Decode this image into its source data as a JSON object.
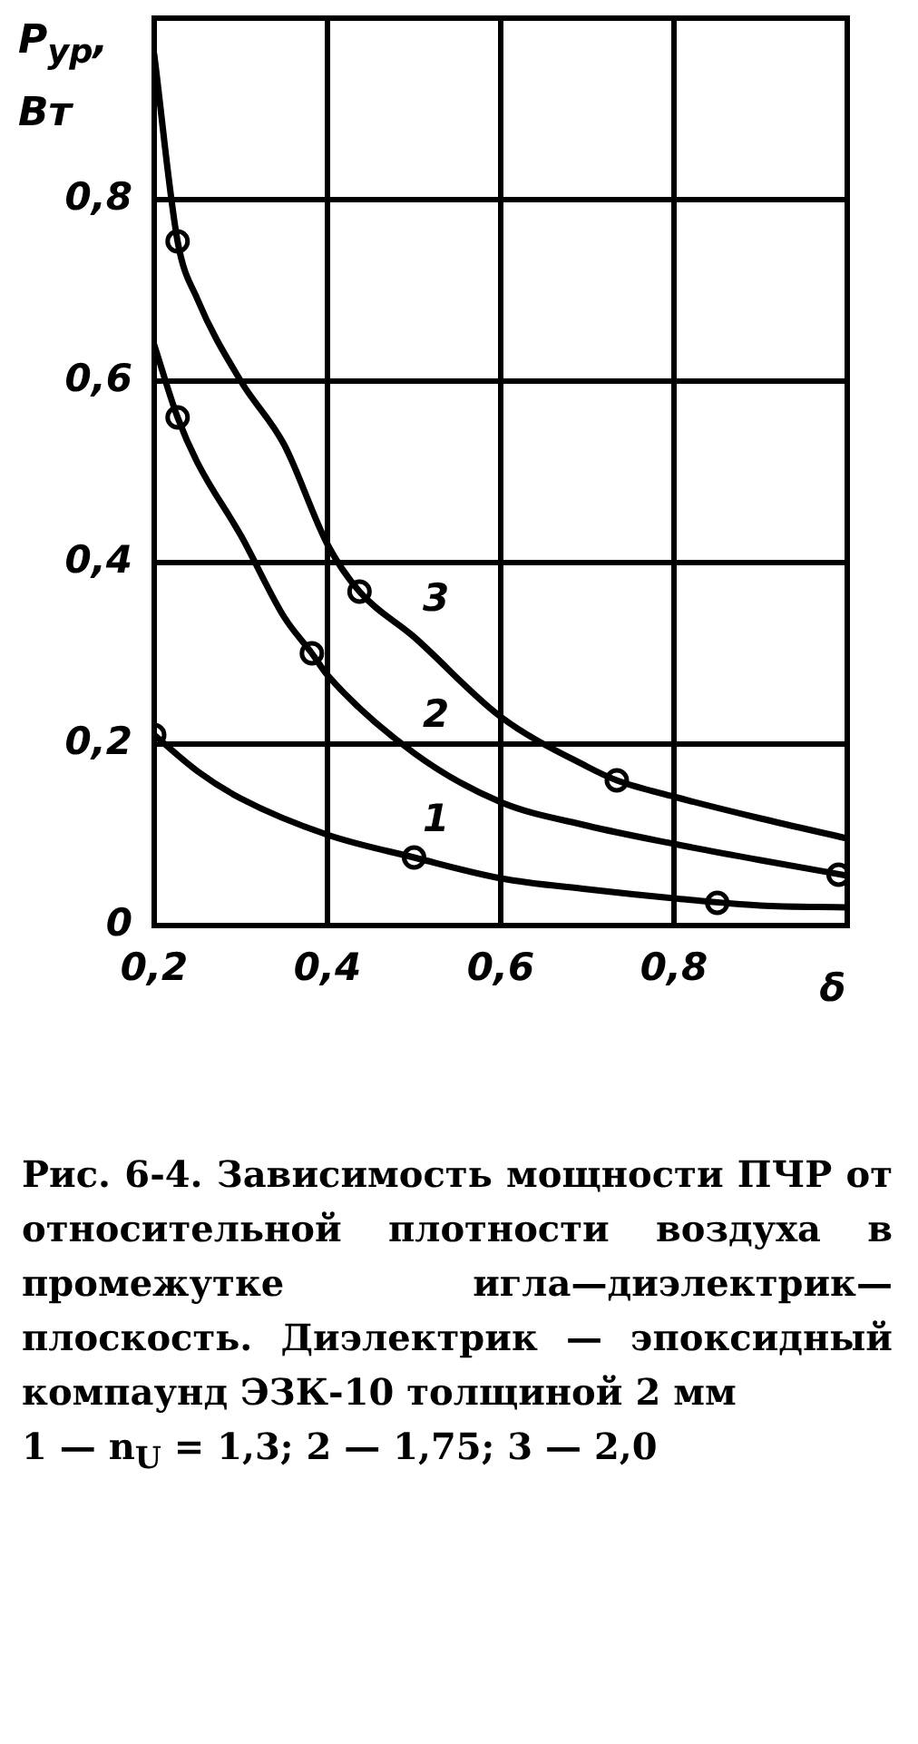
{
  "chart_data": {
    "type": "line",
    "xlabel": "δ",
    "ylabel": "P$_{ур}$, Вт",
    "xlim": [
      0.2,
      1.0
    ],
    "ylim": [
      0,
      1.0
    ],
    "xticks": [
      {
        "value": 0.2,
        "label": "0,2"
      },
      {
        "value": 0.4,
        "label": "0,4"
      },
      {
        "value": 0.6,
        "label": "0,6"
      },
      {
        "value": 0.8,
        "label": "0,8"
      }
    ],
    "yticks": [
      0,
      {
        "value": 0.2,
        "label": "0,2"
      },
      {
        "value": 0.4,
        "label": "0,4"
      },
      {
        "value": 0.6,
        "label": "0,6"
      },
      {
        "value": 0.8,
        "label": "0,8"
      }
    ],
    "grid": true,
    "legend": false,
    "series": [
      {
        "name": "1",
        "type": "line",
        "marker": "none",
        "color": "#000000",
        "x": [
          0.2,
          0.25,
          0.3,
          0.4,
          0.5,
          0.6,
          0.7,
          0.8,
          0.9,
          1.0
        ],
        "values": [
          0.21,
          0.17,
          0.14,
          0.1,
          0.075,
          0.052,
          0.04,
          0.03,
          0.022,
          0.02
        ]
      },
      {
        "type": "scatter",
        "marker": "circle",
        "color": "#000000",
        "x": [
          0.2,
          0.5,
          0.85
        ],
        "values": [
          0.21,
          0.075,
          0.025
        ]
      },
      {
        "name": "2",
        "type": "line",
        "marker": "none",
        "color": "#000000",
        "x": [
          0.2,
          0.227,
          0.25,
          0.3,
          0.35,
          0.382,
          0.4,
          0.5,
          0.6,
          0.7,
          0.8,
          0.9,
          1.0
        ],
        "values": [
          0.64,
          0.56,
          0.51,
          0.43,
          0.34,
          0.3,
          0.276,
          0.19,
          0.136,
          0.11,
          0.09,
          0.072,
          0.055
        ]
      },
      {
        "type": "scatter",
        "marker": "circle",
        "color": "#000000",
        "x": [
          0.227,
          0.382,
          0.99
        ],
        "values": [
          0.56,
          0.3,
          0.056
        ]
      },
      {
        "name": "3",
        "type": "line",
        "marker": "none",
        "color": "#000000",
        "x": [
          0.2,
          0.227,
          0.25,
          0.3,
          0.35,
          0.4,
          0.437,
          0.5,
          0.6,
          0.7,
          0.734,
          0.8,
          0.9,
          1.0
        ],
        "values": [
          0.96,
          0.754,
          0.69,
          0.6,
          0.53,
          0.42,
          0.368,
          0.318,
          0.23,
          0.175,
          0.16,
          0.142,
          0.118,
          0.096
        ]
      },
      {
        "type": "scatter",
        "marker": "circle",
        "color": "#000000",
        "x": [
          0.227,
          0.437,
          0.734
        ],
        "values": [
          0.754,
          0.368,
          0.16
        ]
      }
    ],
    "annotations": [
      "Рис. 6-4. Зависимость мощности ПЧР от относительной плотности воздуха в промежутке игла—диэлектрик— плоскость. Диэлектрик — эпоксидный компаунд ЭЗК-10 толщиной 2 мм",
      "1 — n$_{U}$ = 1,3; 2 — 1,75; 3 — 2,0"
    ]
  }
}
